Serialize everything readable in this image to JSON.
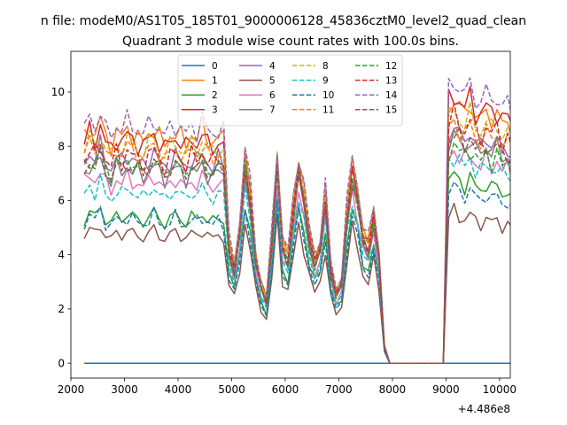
{
  "chart_data": {
    "type": "line",
    "suptitle": "n file: modeM0/AS1T05_185T01_9000006128_45836cztM0_level2_quad_clean",
    "title": "Quadrant 3 module wise count rates with 100.0s bins.",
    "xlabel": "",
    "ylabel": "",
    "offset_text": "+4.486e8",
    "xlim": [
      2000,
      10200
    ],
    "ylim": [
      -0.55,
      11.5
    ],
    "x_ticks": [
      2000,
      3000,
      4000,
      5000,
      6000,
      7000,
      8000,
      9000,
      10000
    ],
    "y_ticks": [
      0,
      2,
      4,
      6,
      8,
      10
    ],
    "x_tick_labels": [
      "2000",
      "3000",
      "4000",
      "5000",
      "6000",
      "7000",
      "8000",
      "9000",
      "10000"
    ],
    "y_tick_labels": [
      "0",
      "2",
      "4",
      "6",
      "8",
      "10"
    ],
    "grid": false,
    "legend_location": "upper-center",
    "legend_columns": 4,
    "bin_width_s": 100,
    "x_start": 2250,
    "profiles": {
      "seg1": [
        1.0,
        1.05,
        1.02,
        1.08,
        1.0,
        0.97,
        1.03,
        1.0,
        1.04,
        1.02,
        1.0,
        0.98,
        1.02,
        1.05,
        1.0,
        0.97,
        1.01,
        1.03,
        1.0,
        0.98,
        1.02,
        1.0,
        1.04,
        1.0,
        0.98,
        1.01,
        0.99
      ],
      "seg2": [
        0.55,
        0.45,
        0.62,
        0.96,
        0.78,
        0.5,
        0.36,
        0.3,
        0.58,
        0.97,
        0.55,
        0.5,
        0.72,
        0.93,
        0.78,
        0.6,
        0.48,
        0.55,
        0.78,
        0.45,
        0.33,
        0.38,
        0.7,
        0.92,
        0.78,
        0.6,
        0.55,
        0.7,
        0.5,
        0.08,
        0.0
      ],
      "seg3": [
        1.0,
        1.04,
        1.0,
        0.98,
        1.02,
        0.97,
        0.95,
        0.99,
        0.96,
        0.98,
        0.93,
        0.95,
        0.9,
        0.94,
        0.92,
        0.88,
        0.86,
        0.82,
        0.84,
        0.8,
        0.22
      ]
    },
    "series": [
      {
        "name": "0",
        "color": "#1f77b4",
        "dash": "solid",
        "level": 0.0,
        "level2": 0.0,
        "level3": 0.0
      },
      {
        "name": "1",
        "color": "#ff7f0e",
        "dash": "solid",
        "level": 8.3,
        "level2": 8.1,
        "level3": 9.4
      },
      {
        "name": "2",
        "color": "#2ca02c",
        "dash": "solid",
        "level": 5.3,
        "level2": 6.2,
        "level3": 6.7
      },
      {
        "name": "3",
        "color": "#d62728",
        "dash": "solid",
        "level": 8.1,
        "level2": 7.9,
        "level3": 9.6
      },
      {
        "name": "4",
        "color": "#9467bd",
        "dash": "solid",
        "level": 7.4,
        "level2": 7.6,
        "level3": 8.4
      },
      {
        "name": "5",
        "color": "#8c564b",
        "dash": "solid",
        "level": 4.7,
        "level2": 5.4,
        "level3": 5.4
      },
      {
        "name": "6",
        "color": "#e377c2",
        "dash": "solid",
        "level": 6.6,
        "level2": 6.9,
        "level3": 7.6
      },
      {
        "name": "7",
        "color": "#7f7f7f",
        "dash": "solid",
        "level": 7.0,
        "level2": 7.3,
        "level3": 8.1
      },
      {
        "name": "8",
        "color": "#bcbd22",
        "dash": "dashed",
        "level": 7.9,
        "level2": 8.2,
        "level3": 9.0
      },
      {
        "name": "9",
        "color": "#17becf",
        "dash": "dashed",
        "level": 6.2,
        "level2": 6.6,
        "level3": 7.4
      },
      {
        "name": "10",
        "color": "#1f77b4",
        "dash": "dashed",
        "level": 5.2,
        "level2": 5.9,
        "level3": 6.3
      },
      {
        "name": "11",
        "color": "#ff7f0e",
        "dash": "dashed",
        "level": 7.7,
        "level2": 7.9,
        "level3": 8.6
      },
      {
        "name": "12",
        "color": "#2ca02c",
        "dash": "dashed",
        "level": 7.2,
        "level2": 7.5,
        "level3": 7.8
      },
      {
        "name": "13",
        "color": "#d62728",
        "dash": "dashed",
        "level": 7.5,
        "level2": 7.7,
        "level3": 8.8
      },
      {
        "name": "14",
        "color": "#9467bd",
        "dash": "dashed",
        "level": 8.6,
        "level2": 8.4,
        "level3": 10.1
      },
      {
        "name": "15",
        "color": "#8c564b",
        "dash": "dashed",
        "level": 7.1,
        "level2": 7.4,
        "level3": 8.2
      }
    ]
  }
}
